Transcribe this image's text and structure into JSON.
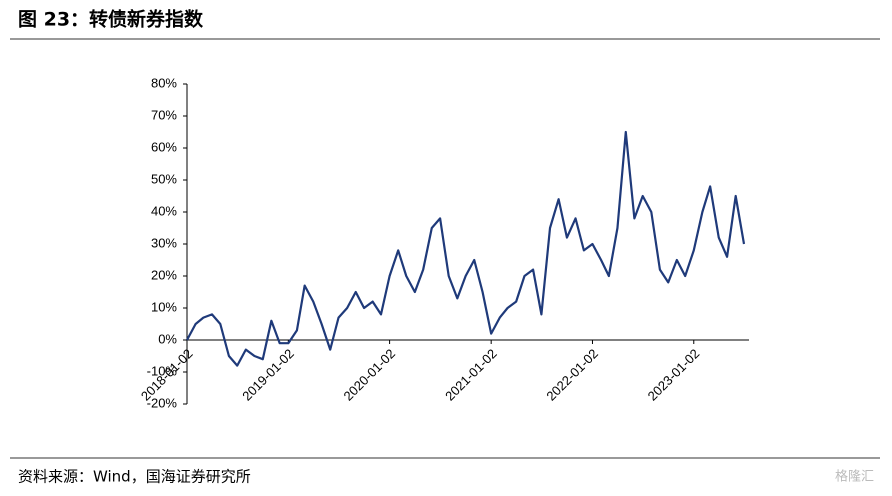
{
  "chart_data": {
    "type": "line",
    "title": "图 23：转债新券指数",
    "source": "资料来源：Wind，国海证券研究所",
    "watermark": "格隆汇",
    "x": [
      "2018-01-02",
      "2018-02-02",
      "2018-03-02",
      "2018-04-02",
      "2018-05-02",
      "2018-06-02",
      "2018-07-02",
      "2018-08-02",
      "2018-09-02",
      "2018-10-02",
      "2018-11-02",
      "2018-12-02",
      "2019-01-02",
      "2019-02-02",
      "2019-03-02",
      "2019-04-02",
      "2019-05-02",
      "2019-06-02",
      "2019-07-02",
      "2019-08-02",
      "2019-09-02",
      "2019-10-02",
      "2019-11-02",
      "2019-12-02",
      "2020-01-02",
      "2020-02-02",
      "2020-03-02",
      "2020-04-02",
      "2020-05-02",
      "2020-06-02",
      "2020-07-02",
      "2020-08-02",
      "2020-09-02",
      "2020-10-02",
      "2020-11-02",
      "2020-12-02",
      "2021-01-02",
      "2021-02-02",
      "2021-03-02",
      "2021-04-02",
      "2021-05-02",
      "2021-06-02",
      "2021-07-02",
      "2021-08-02",
      "2021-09-02",
      "2021-10-02",
      "2021-11-02",
      "2021-12-02",
      "2022-01-02",
      "2022-02-02",
      "2022-03-02",
      "2022-04-02",
      "2022-05-02",
      "2022-06-02",
      "2022-07-02",
      "2022-08-02",
      "2022-09-02",
      "2022-10-02",
      "2022-11-02",
      "2022-12-02",
      "2023-01-02",
      "2023-02-02",
      "2023-03-02",
      "2023-04-02",
      "2023-05-02",
      "2023-06-02",
      "2023-07-02"
    ],
    "series": [
      {
        "name": "转债新券指数",
        "color": "#1f3a7a",
        "values": [
          0,
          5,
          7,
          8,
          5,
          -5,
          -8,
          -3,
          -5,
          -6,
          6,
          -1,
          -1,
          3,
          17,
          12,
          5,
          -3,
          7,
          10,
          15,
          10,
          12,
          8,
          20,
          28,
          20,
          15,
          22,
          35,
          38,
          20,
          13,
          20,
          25,
          15,
          2,
          7,
          10,
          12,
          20,
          22,
          8,
          35,
          44,
          32,
          38,
          28,
          30,
          25,
          20,
          35,
          65,
          38,
          45,
          40,
          22,
          18,
          25,
          20,
          28,
          40,
          48,
          32,
          26,
          45,
          30
        ]
      }
    ],
    "xlim": [
      "2018-01-02",
      "2023-07-20"
    ],
    "xticks": [
      "2018-01-02",
      "2019-01-02",
      "2020-01-02",
      "2021-01-02",
      "2022-01-02",
      "2023-01-02"
    ],
    "ylim": [
      -20,
      80
    ],
    "yticks": [
      {
        "value": -20,
        "label": "-20%"
      },
      {
        "value": -10,
        "label": "-10%"
      },
      {
        "value": 0,
        "label": "0%"
      },
      {
        "value": 10,
        "label": "10%"
      },
      {
        "value": 20,
        "label": "20%"
      },
      {
        "value": 30,
        "label": "30%"
      },
      {
        "value": 40,
        "label": "40%"
      },
      {
        "value": 50,
        "label": "50%"
      },
      {
        "value": 60,
        "label": "60%"
      },
      {
        "value": 70,
        "label": "70%"
      },
      {
        "value": 80,
        "label": "80%"
      }
    ]
  }
}
